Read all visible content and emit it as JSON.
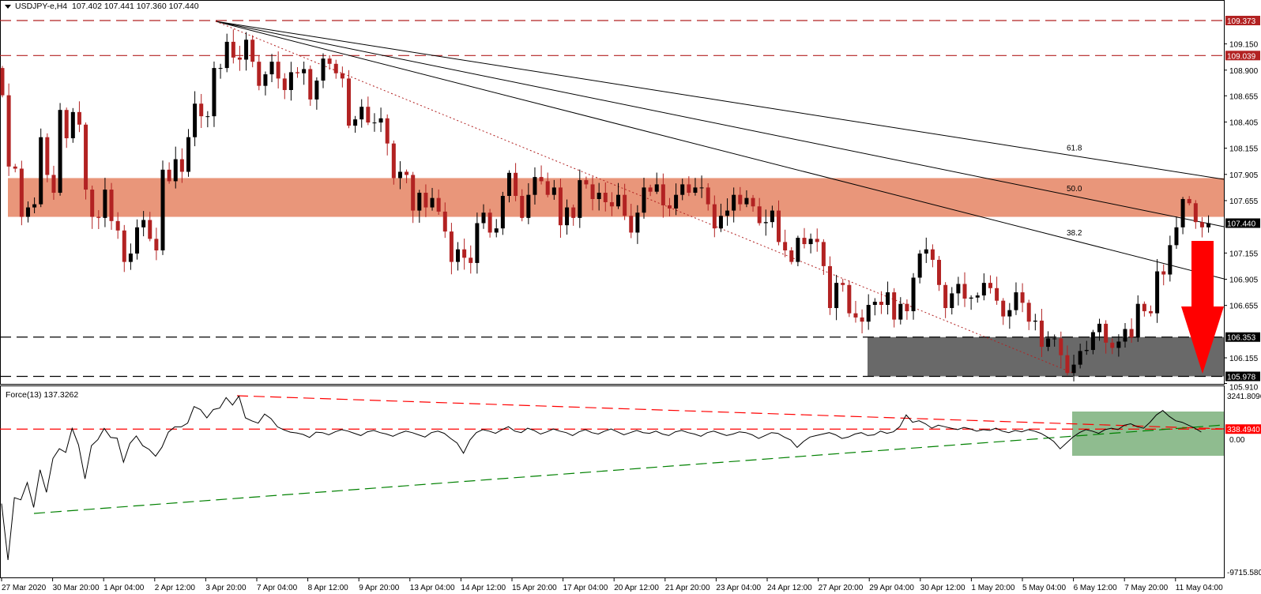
{
  "header": {
    "symbol": "USDJPY-e,H4",
    "ohlc": "107.402 107.441 107.360 107.440"
  },
  "colors": {
    "bull": "#000000",
    "bear": "#b22222",
    "resistance_zone": "#e9967a",
    "support_zone": "#696969",
    "arrow": "#ff0000",
    "force_zone": "#8fbc8f"
  },
  "price_axis": {
    "max": 109.373,
    "min": 105.978,
    "ticks": [
      "109.150",
      "108.900",
      "108.655",
      "108.405",
      "108.155",
      "107.905",
      "107.655",
      "107.155",
      "106.905",
      "106.655",
      "106.155",
      "105.910"
    ],
    "levels": [
      {
        "value": "109.373",
        "style": "red"
      },
      {
        "value": "109.039",
        "style": "red"
      },
      {
        "value": "106.353",
        "style": "black"
      },
      {
        "value": "105.978",
        "style": "black"
      }
    ],
    "current": "107.440"
  },
  "zones": {
    "resistance": [
      107.5,
      107.87
    ],
    "support": [
      105.978,
      106.353
    ]
  },
  "fib_fan": [
    "61.8",
    "50.0",
    "38.2"
  ],
  "time_axis": [
    "27 Mar 2020",
    "30 Mar 20:00",
    "1 Apr 04:00",
    "2 Apr 12:00",
    "3 Apr 20:00",
    "7 Apr 04:00",
    "8 Apr 12:00",
    "9 Apr 20:00",
    "13 Apr 04:00",
    "14 Apr 12:00",
    "15 Apr 20:00",
    "17 Apr 04:00",
    "20 Apr 12:00",
    "21 Apr 20:00",
    "23 Apr 04:00",
    "24 Apr 12:00",
    "27 Apr 20:00",
    "29 Apr 04:00",
    "30 Apr 12:00",
    "1 May 20:00",
    "5 May 04:00",
    "6 May 12:00",
    "7 May 20:00",
    "11 May 04:00"
  ],
  "chart_data": {
    "type": "candlestick",
    "first_open": 108.92,
    "closes": [
      108.66,
      107.98,
      107.96,
      107.5,
      107.59,
      107.62,
      108.26,
      107.9,
      107.73,
      108.52,
      108.25,
      108.5,
      108.38,
      107.76,
      107.5,
      107.49,
      107.76,
      107.46,
      107.37,
      107.07,
      107.15,
      107.4,
      107.47,
      107.29,
      107.18,
      107.95,
      107.84,
      108.05,
      107.93,
      108.26,
      108.58,
      108.46,
      108.46,
      108.92,
      108.92,
      109.17,
      109.02,
      109.0,
      109.19,
      108.98,
      108.75,
      108.86,
      108.98,
      108.82,
      108.71,
      108.88,
      108.87,
      108.91,
      108.62,
      108.8,
      109.01,
      108.96,
      108.87,
      108.82,
      108.37,
      108.43,
      108.55,
      108.4,
      108.4,
      108.44,
      108.2,
      107.87,
      107.93,
      107.9,
      107.56,
      107.73,
      107.59,
      107.68,
      107.55,
      107.36,
      107.07,
      107.19,
      107.11,
      107.06,
      107.44,
      107.54,
      107.35,
      107.39,
      107.7,
      107.92,
      107.7,
      107.49,
      107.71,
      107.88,
      107.84,
      107.71,
      107.78,
      107.42,
      107.59,
      107.49,
      107.85,
      107.81,
      107.67,
      107.73,
      107.64,
      107.6,
      107.71,
      107.51,
      107.35,
      107.54,
      107.78,
      107.74,
      107.81,
      107.61,
      107.58,
      107.71,
      107.81,
      107.73,
      107.78,
      107.78,
      107.62,
      107.39,
      107.51,
      107.56,
      107.71,
      107.62,
      107.68,
      107.6,
      107.44,
      107.45,
      107.56,
      107.26,
      107.18,
      107.07,
      107.3,
      107.24,
      107.29,
      107.26,
      107.03,
      106.63,
      106.87,
      106.85,
      106.58,
      106.54,
      106.5,
      106.66,
      106.69,
      106.66,
      106.78,
      106.52,
      106.67,
      106.6,
      106.92,
      107.15,
      107.19,
      107.09,
      106.85,
      106.63,
      106.77,
      106.86,
      106.72,
      106.73,
      106.75,
      106.87,
      106.82,
      106.7,
      106.55,
      106.61,
      106.78,
      106.68,
      106.5,
      106.51,
      106.26,
      106.34,
      106.34,
      106.18,
      106.01,
      106.09,
      106.22,
      106.23,
      106.4,
      106.48,
      106.3,
      106.25,
      106.31,
      106.43,
      106.35,
      106.67,
      106.6,
      106.58,
      106.98,
      106.95,
      107.23,
      107.4,
      107.67,
      107.63,
      107.45,
      107.4,
      107.44
    ]
  },
  "force": {
    "label": "Force(13) 137.3262",
    "axis_max": "3241.8096",
    "axis_min": "-9715.580",
    "zero_label": "0.00",
    "level_label": "338.4940",
    "max": 3241.8096,
    "min": -9715.58,
    "level": 338.494,
    "values": [
      -4715,
      -8540,
      -4307,
      -4460,
      -3287,
      -4970,
      -2420,
      -3950,
      -1654,
      -991,
      -1246,
      386,
      -736,
      -3031,
      -787,
      -379,
      386,
      -226,
      -277,
      -1909,
      -634,
      -124,
      -787,
      -1042,
      -1501,
      -889,
      131,
      488,
      488,
      743,
      1865,
      1661,
      1100,
      1661,
      1763,
      2477,
      1967,
      2579,
      1100,
      896,
      743,
      1355,
      1049,
      488,
      284,
      131,
      80,
      -22,
      -226,
      131,
      100,
      -50,
      150,
      300,
      200,
      50,
      -100,
      150,
      250,
      100,
      0,
      -150,
      50,
      200,
      100,
      -50,
      -200,
      100,
      200,
      50,
      -300,
      -600,
      -1300,
      -400,
      100,
      300,
      200,
      50,
      300,
      500,
      200,
      100,
      400,
      250,
      0,
      150,
      350,
      200,
      100,
      -100,
      150,
      300,
      100,
      0,
      200,
      350,
      150,
      -50,
      100,
      250,
      100,
      50,
      200,
      0,
      -100,
      150,
      250,
      100,
      0,
      -150,
      100,
      200,
      50,
      -100,
      0,
      150,
      100,
      -50,
      -300,
      -100,
      100,
      50,
      -200,
      -400,
      -900,
      -500,
      -200,
      -100,
      0,
      100,
      -50,
      -300,
      -200,
      0,
      100,
      -100,
      -50,
      200,
      50,
      150,
      500,
      1300,
      800,
      900,
      700,
      400,
      600,
      500,
      400,
      300,
      450,
      350,
      200,
      300,
      250,
      400,
      200,
      100,
      250,
      150,
      300,
      200,
      50,
      -200,
      -500,
      -1000,
      -600,
      -200,
      100,
      300,
      200,
      50,
      300,
      400,
      300,
      600,
      700,
      500,
      400,
      800,
      1300,
      1600,
      1200,
      900,
      800,
      600,
      400,
      137
    ]
  }
}
